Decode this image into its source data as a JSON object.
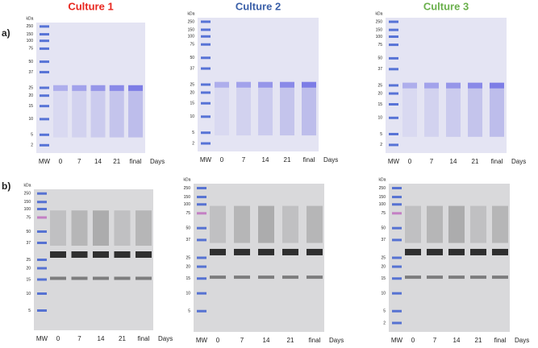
{
  "unit": "kDa",
  "lanes": [
    "MW",
    "0",
    "7",
    "14",
    "21",
    "final"
  ],
  "days": "Days",
  "rows": [
    {
      "label": "a)",
      "gels": [
        {
          "title": "Culture 1",
          "title_color": "#e8261e",
          "markers": [
            250,
            150,
            100,
            75,
            50,
            37,
            25,
            20,
            15,
            10,
            5,
            2
          ]
        },
        {
          "title": "Culture 2",
          "title_color": "#3a5fa8",
          "markers": [
            250,
            150,
            100,
            75,
            50,
            37,
            25,
            20,
            15,
            10,
            5,
            2
          ]
        },
        {
          "title": "Culture 3",
          "title_color": "#6ab04c",
          "markers": [
            250,
            150,
            100,
            75,
            50,
            37,
            25,
            20,
            15,
            10,
            5,
            2
          ]
        }
      ]
    },
    {
      "label": "b)",
      "gels": [
        {
          "markers": [
            250,
            150,
            100,
            75,
            50,
            37,
            25,
            20,
            15,
            10,
            5
          ]
        },
        {
          "markers": [
            250,
            150,
            100,
            75,
            50,
            37,
            25,
            20,
            15,
            10,
            5
          ]
        },
        {
          "markers": [
            250,
            150,
            100,
            75,
            50,
            37,
            25,
            20,
            15,
            10,
            5,
            2
          ]
        }
      ]
    }
  ]
}
